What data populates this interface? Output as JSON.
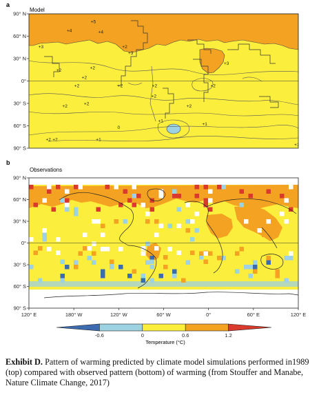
{
  "figure": {
    "panel_a": {
      "letter": "a",
      "title": "Model"
    },
    "panel_b": {
      "letter": "b",
      "title": "Observations"
    },
    "colorbar": {
      "label": "Temperature (°C)",
      "ticks": [
        "-0.6",
        "0",
        "0.6",
        "1.2"
      ],
      "colors": [
        "#3d6bb0",
        "#9dd2e2",
        "#fbee3c",
        "#f3a221",
        "#d93a2c"
      ]
    }
  },
  "caption": {
    "label": "Exhibit D.",
    "text": "Pattern of warming predicted by climate model simulations performed in1989 (top) compared with observed pattern (bottom) of warming (from Stouffer and Manabe, Nature Climate Change, 2017)"
  },
  "chart_data": [
    {
      "type": "heatmap",
      "title": "Model",
      "panel": "a",
      "x_tick_labels": [],
      "y_tick_labels": [
        "90° N",
        "60° N",
        "30° N",
        "0°",
        "30° S",
        "60° S",
        "90° S"
      ],
      "y_ticks_deg": [
        90,
        60,
        30,
        0,
        -30,
        -60,
        -90
      ],
      "ylim": [
        -90,
        90
      ],
      "contour_labels": [
        {
          "text": "+5",
          "lon": -154,
          "lat": 80
        },
        {
          "text": "+4",
          "lon": 174,
          "lat": 68
        },
        {
          "text": "+4",
          "lon": -144,
          "lat": 66
        },
        {
          "text": "+3",
          "lon": 136,
          "lat": 46
        },
        {
          "text": "+2",
          "lon": -112,
          "lat": 46
        },
        {
          "text": "+3",
          "lon": -104,
          "lat": 38
        },
        {
          "text": "+3",
          "lon": 24,
          "lat": 24
        },
        {
          "text": "+2",
          "lon": 160,
          "lat": 15
        },
        {
          "text": "+2",
          "lon": -155,
          "lat": 18
        },
        {
          "text": "+2",
          "lon": 194,
          "lat": 5
        },
        {
          "text": "+2",
          "lon": -176,
          "lat": -6
        },
        {
          "text": "+2",
          "lon": -118,
          "lat": -6
        },
        {
          "text": "+2",
          "lon": -72,
          "lat": -6
        },
        {
          "text": "+2",
          "lon": 6,
          "lat": -6
        },
        {
          "text": "+2",
          "lon": -73,
          "lat": -20
        },
        {
          "text": "+2",
          "lon": 168,
          "lat": -33
        },
        {
          "text": "+2",
          "lon": -163,
          "lat": -30
        },
        {
          "text": "+2",
          "lon": -26,
          "lat": -33
        },
        {
          "text": "+1",
          "lon": -5,
          "lat": -57
        },
        {
          "text": "+1",
          "lon": -64,
          "lat": -53
        },
        {
          "text": "0",
          "lon": -120,
          "lat": -62
        },
        {
          "text": "+1",
          "lon": 118,
          "lat": -85
        },
        {
          "text": "+1",
          "lon": -147,
          "lat": -78
        },
        {
          "text": "+2",
          "lon": 155,
          "lat": -78
        },
        {
          "text": "+2",
          "lon": 146,
          "lat": -78
        }
      ]
    },
    {
      "type": "heatmap",
      "title": "Observations",
      "panel": "b",
      "x_tick_labels": [
        "120° E",
        "180° W",
        "120° W",
        "60° W",
        "0°",
        "60° E",
        "120° E"
      ],
      "x_ticks_lon": [
        120,
        180,
        240,
        300,
        360,
        420,
        480
      ],
      "y_tick_labels": [
        "90° N",
        "60° N",
        "30° N",
        "0°",
        "30° S",
        "60° S",
        "90° S"
      ],
      "y_ticks_deg": [
        90,
        60,
        30,
        0,
        -30,
        -60,
        -90
      ],
      "ylim": [
        -90,
        90
      ],
      "xlim": [
        120,
        480
      ],
      "color_levels_degC": [
        -0.6,
        0,
        0.6,
        1.2
      ],
      "regions": [
        {
          "description": "Arctic and northern high-latitude land",
          "value": "0.6 to 1.2+",
          "color": "#f3a221"
        },
        {
          "description": "Most ocean and tropical regions",
          "value": "0 to 0.6",
          "color": "#fbee3c"
        },
        {
          "description": "Southern Ocean / Antarctic margin",
          "value": "0 to 0.6",
          "color": "#fbee3c"
        },
        {
          "description": "Antarctica",
          "value": "no data",
          "color": "#ffffff"
        }
      ]
    }
  ]
}
